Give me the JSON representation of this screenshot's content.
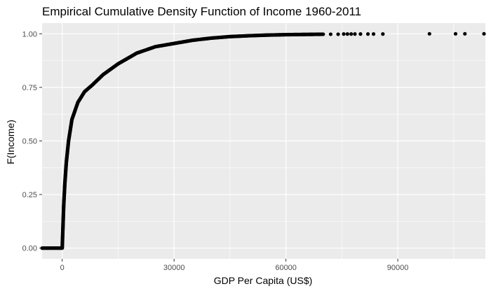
{
  "chart_data": {
    "type": "scatter",
    "title": "Empirical Cumulative Density Function of Income 1960-2011",
    "xlabel": "GDP Per Capita (US$)",
    "ylabel": "F(Income)",
    "xlim": [
      -5400,
      113500
    ],
    "ylim": [
      -0.05,
      1.05
    ],
    "x_ticks": [
      0,
      30000,
      60000,
      90000
    ],
    "x_tick_labels": [
      "0",
      "30000",
      "60000",
      "90000"
    ],
    "y_ticks": [
      0,
      0.25,
      0.5,
      0.75,
      1
    ],
    "y_tick_labels": [
      "0.00",
      "0.25",
      "0.50",
      "0.75",
      "1.00"
    ],
    "grid": true,
    "legend": "none",
    "colors": {
      "panel": "#ebebeb",
      "grid": "#ffffff",
      "points": "#000000"
    },
    "curve": [
      {
        "x": -5400,
        "y": 0.0
      },
      {
        "x": 0,
        "y": 0.0
      },
      {
        "x": 200,
        "y": 0.1
      },
      {
        "x": 400,
        "y": 0.2
      },
      {
        "x": 700,
        "y": 0.3
      },
      {
        "x": 1100,
        "y": 0.4
      },
      {
        "x": 1700,
        "y": 0.5
      },
      {
        "x": 2600,
        "y": 0.6
      },
      {
        "x": 4200,
        "y": 0.68
      },
      {
        "x": 6000,
        "y": 0.73
      },
      {
        "x": 8000,
        "y": 0.76
      },
      {
        "x": 11000,
        "y": 0.81
      },
      {
        "x": 15000,
        "y": 0.86
      },
      {
        "x": 20000,
        "y": 0.91
      },
      {
        "x": 25000,
        "y": 0.94
      },
      {
        "x": 30000,
        "y": 0.955
      },
      {
        "x": 35000,
        "y": 0.97
      },
      {
        "x": 40000,
        "y": 0.98
      },
      {
        "x": 45000,
        "y": 0.987
      },
      {
        "x": 50000,
        "y": 0.991
      },
      {
        "x": 55000,
        "y": 0.994
      },
      {
        "x": 60000,
        "y": 0.996
      },
      {
        "x": 65000,
        "y": 0.997
      },
      {
        "x": 70000,
        "y": 0.998
      }
    ],
    "tail_points": [
      {
        "x": 72000,
        "y": 0.998
      },
      {
        "x": 74000,
        "y": 0.998
      },
      {
        "x": 75500,
        "y": 0.999
      },
      {
        "x": 76500,
        "y": 0.999
      },
      {
        "x": 77500,
        "y": 0.999
      },
      {
        "x": 78500,
        "y": 0.999
      },
      {
        "x": 80000,
        "y": 0.999
      },
      {
        "x": 82000,
        "y": 0.999
      },
      {
        "x": 83500,
        "y": 0.999
      },
      {
        "x": 86000,
        "y": 0.999
      },
      {
        "x": 98500,
        "y": 1.0
      },
      {
        "x": 105500,
        "y": 1.0
      },
      {
        "x": 108000,
        "y": 1.0
      },
      {
        "x": 113500,
        "y": 1.0
      }
    ]
  }
}
